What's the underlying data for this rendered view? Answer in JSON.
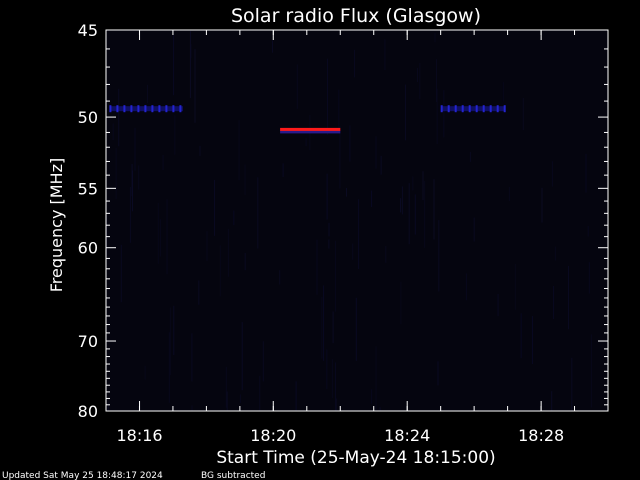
{
  "chart_data": {
    "type": "heatmap",
    "title": "Solar radio Flux (Glasgow)",
    "xlabel": "Start Time (25-May-24 18:15:00)",
    "ylabel": "Frequency [MHz]",
    "x_range_minutes": [
      18.25,
      18.5
    ],
    "x_ticks": [
      {
        "label": "18:16",
        "value": 18.2667
      },
      {
        "label": "18:20",
        "value": 18.3333
      },
      {
        "label": "18:24",
        "value": 18.4
      },
      {
        "label": "18:28",
        "value": 18.4667
      }
    ],
    "y_range": [
      45,
      80
    ],
    "y_reversed": true,
    "y_ticks": [
      45,
      50,
      55,
      60,
      70,
      80
    ],
    "grid": false,
    "colors": {
      "background": "#000000",
      "plot": "#05050f",
      "axis": "#ffffff",
      "band": "#1a1aa8",
      "event": "#ff1a1a"
    },
    "features": [
      {
        "name": "",
        "type": "band",
        "freq_mhz": 49.5,
        "t_start": 18.2517,
        "t_end": 18.2883
      },
      {
        "name": "",
        "type": "band",
        "freq_mhz": 49.5,
        "t_start": 18.4167,
        "t_end": 18.4483
      },
      {
        "name": "",
        "type": "event",
        "freq_mhz": 50.8,
        "t_start": 18.3367,
        "t_end": 18.3667
      }
    ]
  },
  "footer": {
    "updated": "Updated Sat May 25 18:48:17 2024",
    "note": "BG subtracted"
  }
}
